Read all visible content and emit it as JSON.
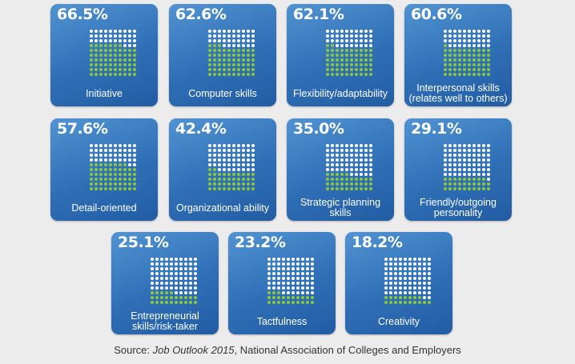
{
  "chart_data": {
    "type": "other",
    "title": "",
    "style": "grid of 100 dots per card; green dots show the percentage, white dots the remainder",
    "colors": {
      "card": "#2f6fb6",
      "filled_dot": "#8cc63f",
      "empty_dot": "#ffffff",
      "text": "#ffffff"
    },
    "items": [
      {
        "label": "Initiative",
        "value": 66.5,
        "display": "66.5%"
      },
      {
        "label": "Computer skills",
        "value": 62.6,
        "display": "62.6%"
      },
      {
        "label": "Flexibility/adaptability",
        "value": 62.1,
        "display": "62.1%"
      },
      {
        "label": "Interpersonal skills\n(relates well to others)",
        "value": 60.6,
        "display": "60.6%"
      },
      {
        "label": "Detail-oriented",
        "value": 57.6,
        "display": "57.6%"
      },
      {
        "label": "Organizational ability",
        "value": 42.4,
        "display": "42.4%"
      },
      {
        "label": "Strategic planning skills",
        "value": 35.0,
        "display": "35.0%"
      },
      {
        "label": "Friendly/outgoing\npersonality",
        "value": 29.1,
        "display": "29.1%"
      },
      {
        "label": "Entrepreneurial\nskills/risk-taker",
        "value": 25.1,
        "display": "25.1%"
      },
      {
        "label": "Tactfulness",
        "value": 23.2,
        "display": "23.2%"
      },
      {
        "label": "Creativity",
        "value": 18.2,
        "display": "18.2%"
      }
    ]
  },
  "source": {
    "prefix": "Source: ",
    "publication": "Job Outlook 2015",
    "suffix": ", National Association of Colleges and Employers"
  }
}
